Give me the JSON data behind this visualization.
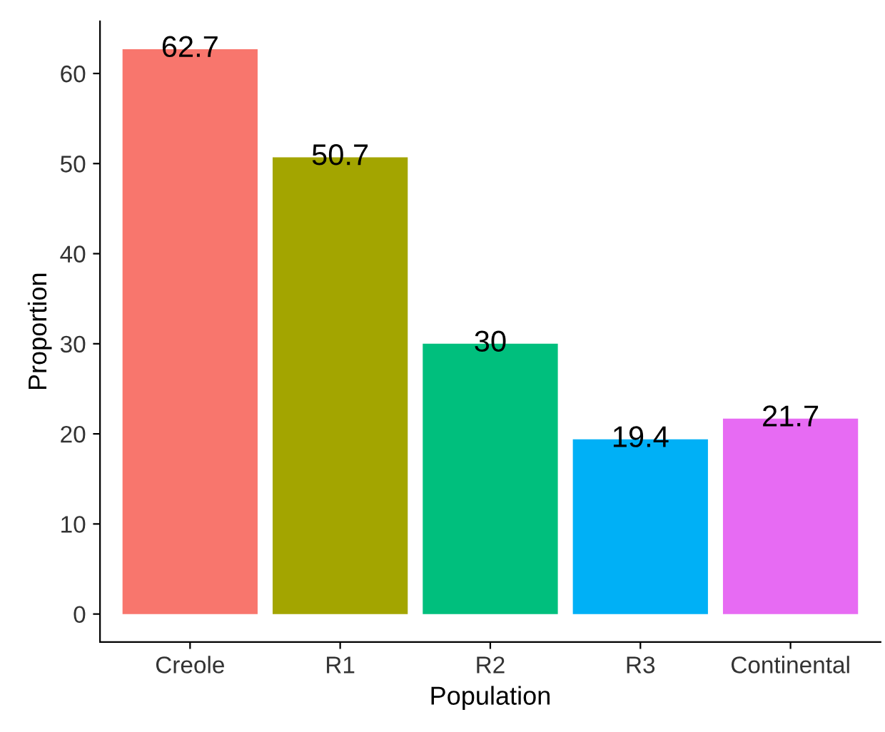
{
  "chart_data": {
    "type": "bar",
    "xlabel": "Population",
    "ylabel": "Proportion",
    "categories": [
      "Creole",
      "R1",
      "R2",
      "R3",
      "Continental"
    ],
    "values": [
      62.7,
      50.7,
      30,
      19.4,
      21.7
    ],
    "colors": [
      "#f8766d",
      "#a3a500",
      "#00bf7d",
      "#00b0f6",
      "#e76bf3"
    ],
    "value_labels": [
      "62.7",
      "50.7",
      "30",
      "19.4",
      "21.7"
    ],
    "ylim": [
      -3.1,
      65.8
    ],
    "yticks": [
      0,
      10,
      20,
      30,
      40,
      50,
      60
    ],
    "grid": false,
    "legend": false
  }
}
